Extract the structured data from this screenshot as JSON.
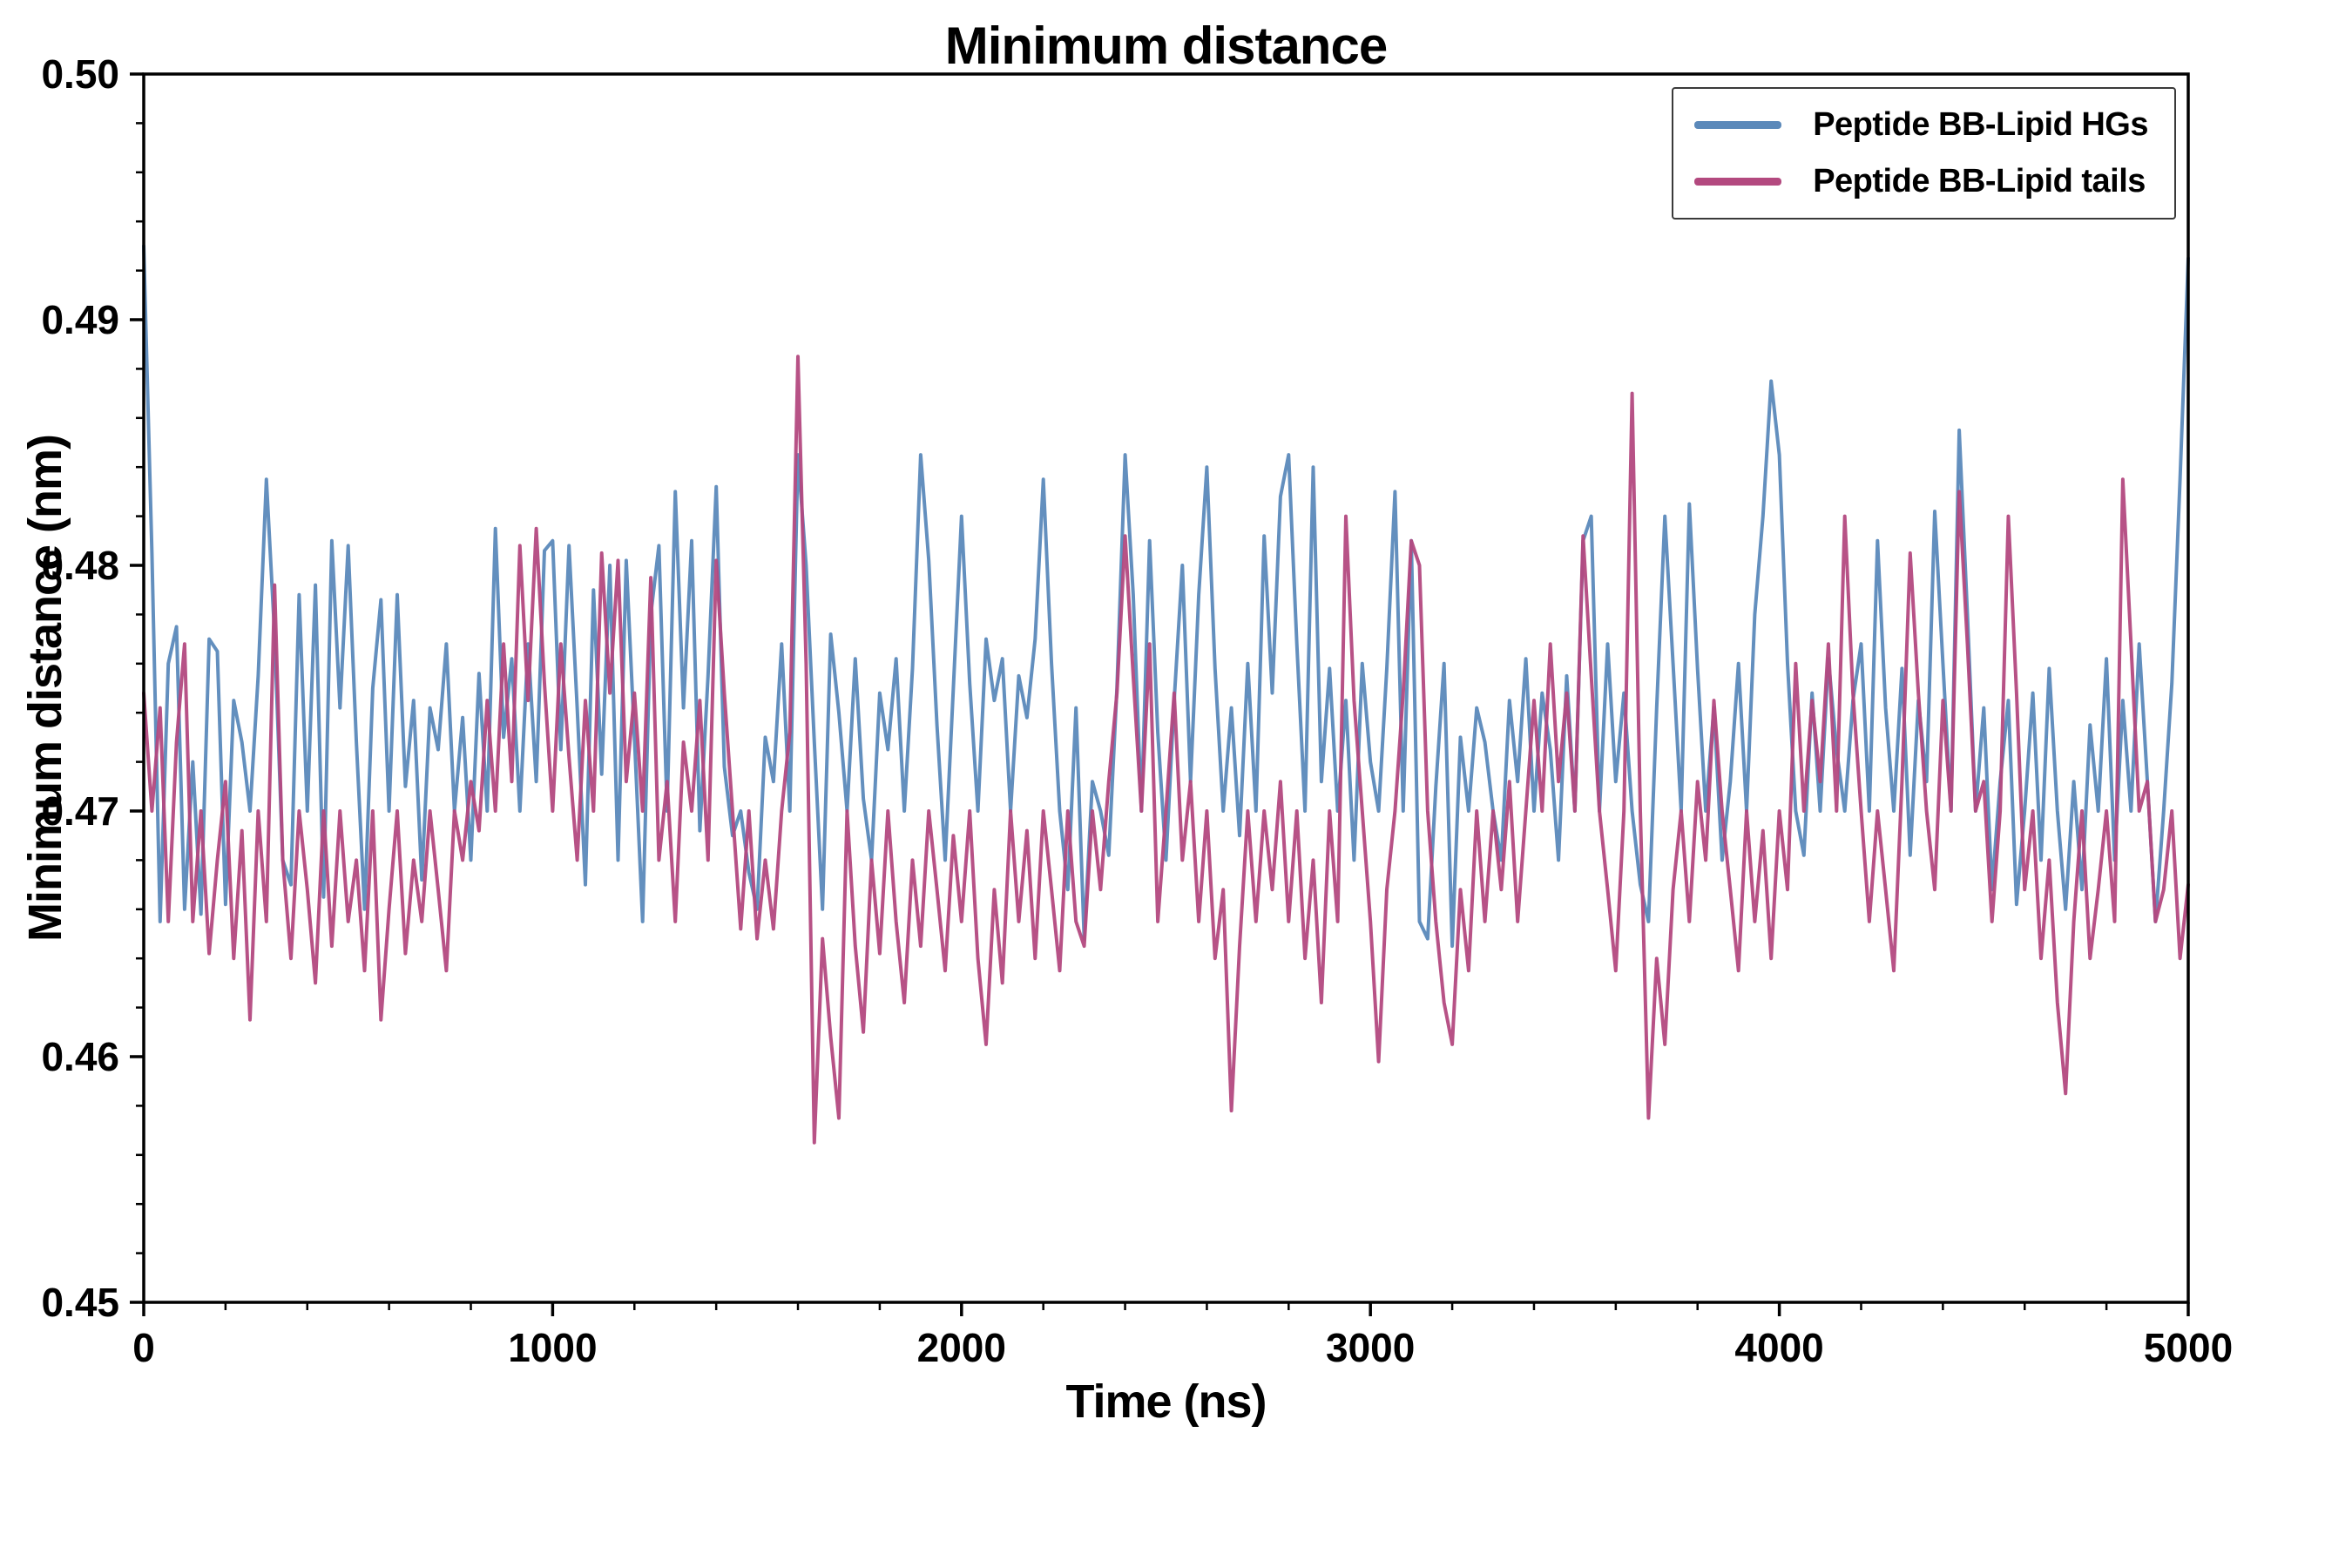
{
  "title": "Minimum distance",
  "xlabel": "Time (ns)",
  "ylabel": "Minimum distance (nm)",
  "chart_data": {
    "type": "line",
    "title": "Minimum distance",
    "xlabel": "Time (ns)",
    "ylabel": "Minimum distance (nm)",
    "xlim": [
      0,
      5000
    ],
    "ylim": [
      0.45,
      0.5
    ],
    "xticks": [
      0,
      1000,
      2000,
      3000,
      4000,
      5000
    ],
    "yticks": [
      0.45,
      0.46,
      0.47,
      0.48,
      0.49,
      0.5
    ],
    "x_minor_step": 200,
    "y_minor_step": 0.002,
    "grid": false,
    "legend_position": "upper right",
    "x_step": 20,
    "series": [
      {
        "name": "Peptide BB-Lipid HGs",
        "color": "#5b89ba",
        "values": [
          0.493,
          0.4805,
          0.4655,
          0.476,
          0.4775,
          0.466,
          0.472,
          0.4658,
          0.477,
          0.4765,
          0.4662,
          0.4745,
          0.4728,
          0.47,
          0.4755,
          0.4835,
          0.4772,
          0.468,
          0.467,
          0.4788,
          0.47,
          0.4792,
          0.4665,
          0.481,
          0.4742,
          0.4808,
          0.4728,
          0.466,
          0.475,
          0.4786,
          0.47,
          0.4788,
          0.471,
          0.4745,
          0.4672,
          0.4742,
          0.4725,
          0.4768,
          0.47,
          0.4738,
          0.468,
          0.4756,
          0.47,
          0.4815,
          0.473,
          0.4762,
          0.47,
          0.4768,
          0.4712,
          0.4806,
          0.481,
          0.4725,
          0.4808,
          0.4742,
          0.467,
          0.479,
          0.4715,
          0.48,
          0.468,
          0.4802,
          0.473,
          0.4655,
          0.478,
          0.4808,
          0.47,
          0.483,
          0.4742,
          0.481,
          0.4692,
          0.4755,
          0.4832,
          0.4718,
          0.469,
          0.47,
          0.4675,
          0.466,
          0.473,
          0.4712,
          0.4768,
          0.47,
          0.4845,
          0.48,
          0.4728,
          0.466,
          0.4772,
          0.474,
          0.47,
          0.4762,
          0.4705,
          0.468,
          0.4748,
          0.4725,
          0.4762,
          0.47,
          0.4758,
          0.4845,
          0.4802,
          0.4735,
          0.468,
          0.475,
          0.482,
          0.4752,
          0.47,
          0.477,
          0.4745,
          0.4762,
          0.47,
          0.4755,
          0.4738,
          0.477,
          0.4835,
          0.476,
          0.47,
          0.4668,
          0.4742,
          0.4648,
          0.4712,
          0.47,
          0.4682,
          0.475,
          0.4845,
          0.4788,
          0.47,
          0.481,
          0.4732,
          0.468,
          0.4745,
          0.48,
          0.4712,
          0.4788,
          0.484,
          0.4758,
          0.47,
          0.4742,
          0.469,
          0.476,
          0.47,
          0.4812,
          0.4748,
          0.4828,
          0.4845,
          0.4768,
          0.47,
          0.484,
          0.4712,
          0.4758,
          0.47,
          0.4745,
          0.468,
          0.476,
          0.472,
          0.47,
          0.4758,
          0.483,
          0.47,
          0.481,
          0.4655,
          0.4648,
          0.471,
          0.476,
          0.4645,
          0.473,
          0.47,
          0.4742,
          0.4728,
          0.47,
          0.468,
          0.4745,
          0.4712,
          0.4762,
          0.47,
          0.4748,
          0.4725,
          0.468,
          0.4755,
          0.47,
          0.481,
          0.482,
          0.47,
          0.4768,
          0.4712,
          0.4748,
          0.47,
          0.467,
          0.4655,
          0.4742,
          0.482,
          0.476,
          0.47,
          0.4825,
          0.4758,
          0.47,
          0.4742,
          0.468,
          0.4712,
          0.476,
          0.47,
          0.478,
          0.482,
          0.4875,
          0.4845,
          0.476,
          0.47,
          0.4682,
          0.4748,
          0.47,
          0.4762,
          0.4725,
          0.47,
          0.4745,
          0.4768,
          0.47,
          0.481,
          0.4742,
          0.47,
          0.4758,
          0.4682,
          0.4745,
          0.4712,
          0.4822,
          0.476,
          0.47,
          0.4855,
          0.478,
          0.47,
          0.4742,
          0.4668,
          0.4712,
          0.4745,
          0.4662,
          0.47,
          0.4748,
          0.468,
          0.4758,
          0.47,
          0.466,
          0.4712,
          0.4668,
          0.4735,
          0.47,
          0.4762,
          0.468,
          0.4745,
          0.47,
          0.4768,
          0.4712,
          0.4655,
          0.47,
          0.4752,
          0.4835,
          0.4925
        ]
      },
      {
        "name": "Peptide BB-Lipid tails",
        "color": "#b3497f",
        "values": [
          0.4748,
          0.47,
          0.4742,
          0.4655,
          0.4728,
          0.4768,
          0.4655,
          0.47,
          0.4642,
          0.468,
          0.4712,
          0.464,
          0.4692,
          0.4615,
          0.47,
          0.4655,
          0.4792,
          0.468,
          0.464,
          0.47,
          0.4668,
          0.463,
          0.47,
          0.4645,
          0.47,
          0.4655,
          0.468,
          0.4635,
          0.47,
          0.4615,
          0.466,
          0.47,
          0.4642,
          0.468,
          0.4655,
          0.47,
          0.4668,
          0.4635,
          0.47,
          0.468,
          0.4712,
          0.4692,
          0.4745,
          0.47,
          0.4768,
          0.4712,
          0.4808,
          0.4745,
          0.4815,
          0.4752,
          0.47,
          0.4768,
          0.4722,
          0.468,
          0.4745,
          0.47,
          0.4805,
          0.4748,
          0.4802,
          0.4712,
          0.4748,
          0.47,
          0.4795,
          0.468,
          0.4712,
          0.4655,
          0.4728,
          0.47,
          0.4745,
          0.468,
          0.4802,
          0.4748,
          0.47,
          0.4652,
          0.47,
          0.4648,
          0.468,
          0.4652,
          0.47,
          0.4732,
          0.4885,
          0.476,
          0.4565,
          0.4648,
          0.4608,
          0.4575,
          0.47,
          0.4645,
          0.461,
          0.468,
          0.4642,
          0.47,
          0.4655,
          0.4622,
          0.468,
          0.4645,
          0.47,
          0.4668,
          0.4635,
          0.469,
          0.4655,
          0.47,
          0.464,
          0.4605,
          0.4668,
          0.463,
          0.47,
          0.4655,
          0.4692,
          0.464,
          0.47,
          0.4668,
          0.4635,
          0.47,
          0.4655,
          0.4645,
          0.47,
          0.4668,
          0.4712,
          0.4748,
          0.4812,
          0.4755,
          0.47,
          0.4768,
          0.4655,
          0.47,
          0.4748,
          0.468,
          0.4712,
          0.4655,
          0.47,
          0.464,
          0.4668,
          0.4578,
          0.4645,
          0.47,
          0.4655,
          0.47,
          0.4668,
          0.4712,
          0.4655,
          0.47,
          0.464,
          0.468,
          0.4622,
          0.47,
          0.4655,
          0.482,
          0.4745,
          0.47,
          0.4655,
          0.4598,
          0.4668,
          0.47,
          0.4748,
          0.481,
          0.48,
          0.47,
          0.4655,
          0.4622,
          0.4605,
          0.4668,
          0.4635,
          0.47,
          0.4655,
          0.47,
          0.4668,
          0.4712,
          0.4655,
          0.47,
          0.4745,
          0.47,
          0.4768,
          0.4712,
          0.4748,
          0.47,
          0.4812,
          0.4755,
          0.47,
          0.4668,
          0.4635,
          0.47,
          0.487,
          0.47,
          0.4575,
          0.464,
          0.4605,
          0.4668,
          0.47,
          0.4655,
          0.4712,
          0.468,
          0.4745,
          0.47,
          0.4668,
          0.4635,
          0.47,
          0.4655,
          0.4692,
          0.464,
          0.47,
          0.4668,
          0.476,
          0.47,
          0.4745,
          0.4712,
          0.4768,
          0.47,
          0.482,
          0.4748,
          0.47,
          0.4655,
          0.47,
          0.4668,
          0.4635,
          0.4712,
          0.4805,
          0.4748,
          0.47,
          0.4668,
          0.4745,
          0.47,
          0.483,
          0.4768,
          0.47,
          0.4712,
          0.4655,
          0.47,
          0.482,
          0.4748,
          0.4668,
          0.47,
          0.464,
          0.468,
          0.4622,
          0.4585,
          0.4655,
          0.47,
          0.464,
          0.4668,
          0.47,
          0.4655,
          0.4835,
          0.4768,
          0.47,
          0.4712,
          0.4655,
          0.4668,
          0.47,
          0.464,
          0.467
        ]
      }
    ]
  }
}
